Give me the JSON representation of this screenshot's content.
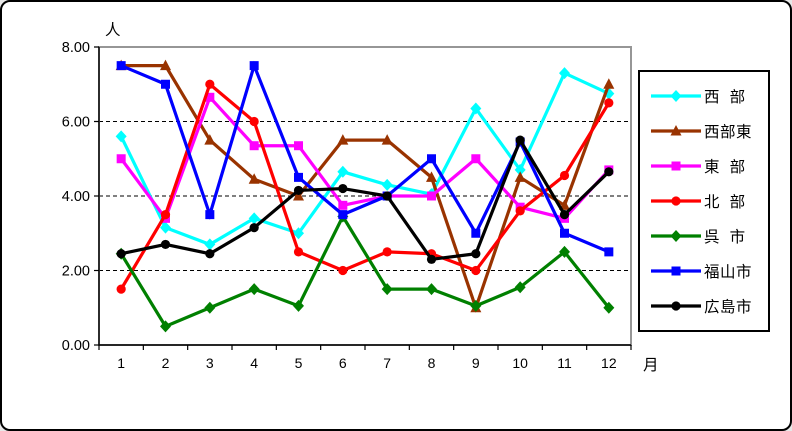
{
  "window": {
    "background": "#FFFFFF",
    "border_color": "#000000"
  },
  "chart_data": {
    "type": "line",
    "title": "",
    "y_axis": {
      "label": "人",
      "min": 0,
      "max": 8,
      "step": 2,
      "tick_labels": [
        "0.00",
        "2.00",
        "4.00",
        "6.00",
        "8.00"
      ],
      "gridlines": "dashed horizontal at 2.00, 4.00, 6.00"
    },
    "x_axis": {
      "label": "月",
      "categories": [
        "1",
        "2",
        "3",
        "4",
        "5",
        "6",
        "7",
        "8",
        "9",
        "10",
        "11",
        "12"
      ]
    },
    "legend_position": "right",
    "plot_border_color": "#969696",
    "axis_color": "#000000",
    "series": [
      {
        "name": "西  部",
        "color": "#00FFFF",
        "marker": "diamond",
        "values": [
          5.6,
          3.15,
          2.7,
          3.4,
          3.0,
          4.65,
          4.3,
          4.05,
          6.35,
          4.7,
          7.3,
          6.75
        ]
      },
      {
        "name": "西部東",
        "color": "#993300",
        "marker": "triangle",
        "values": [
          7.5,
          7.5,
          5.5,
          4.45,
          4.0,
          5.5,
          5.5,
          4.5,
          1.0,
          4.5,
          3.75,
          7.0
        ]
      },
      {
        "name": "東  部",
        "color": "#FF00FF",
        "marker": "square",
        "values": [
          5.0,
          3.4,
          6.65,
          5.35,
          5.35,
          3.75,
          4.0,
          4.0,
          5.0,
          3.7,
          3.4,
          4.7
        ]
      },
      {
        "name": "北  部",
        "color": "#FF0000",
        "marker": "circle",
        "values": [
          1.5,
          3.5,
          7.0,
          6.0,
          2.5,
          2.0,
          2.5,
          2.45,
          2.0,
          3.6,
          4.55,
          6.5
        ]
      },
      {
        "name": "呉  市",
        "color": "#008000",
        "marker": "diamond",
        "values": [
          2.45,
          0.5,
          1.0,
          1.5,
          1.05,
          3.45,
          1.5,
          1.5,
          1.05,
          1.55,
          2.5,
          1.0
        ]
      },
      {
        "name": "福山市",
        "color": "#0000FF",
        "marker": "square",
        "values": [
          7.5,
          7.0,
          3.5,
          7.5,
          4.5,
          3.5,
          4.0,
          5.0,
          3.0,
          5.45,
          3.0,
          2.5
        ]
      },
      {
        "name": "広島市",
        "color": "#000000",
        "marker": "circle",
        "values": [
          2.45,
          2.7,
          2.45,
          3.15,
          4.15,
          4.2,
          4.0,
          2.3,
          2.45,
          5.5,
          3.5,
          4.65
        ]
      }
    ]
  }
}
